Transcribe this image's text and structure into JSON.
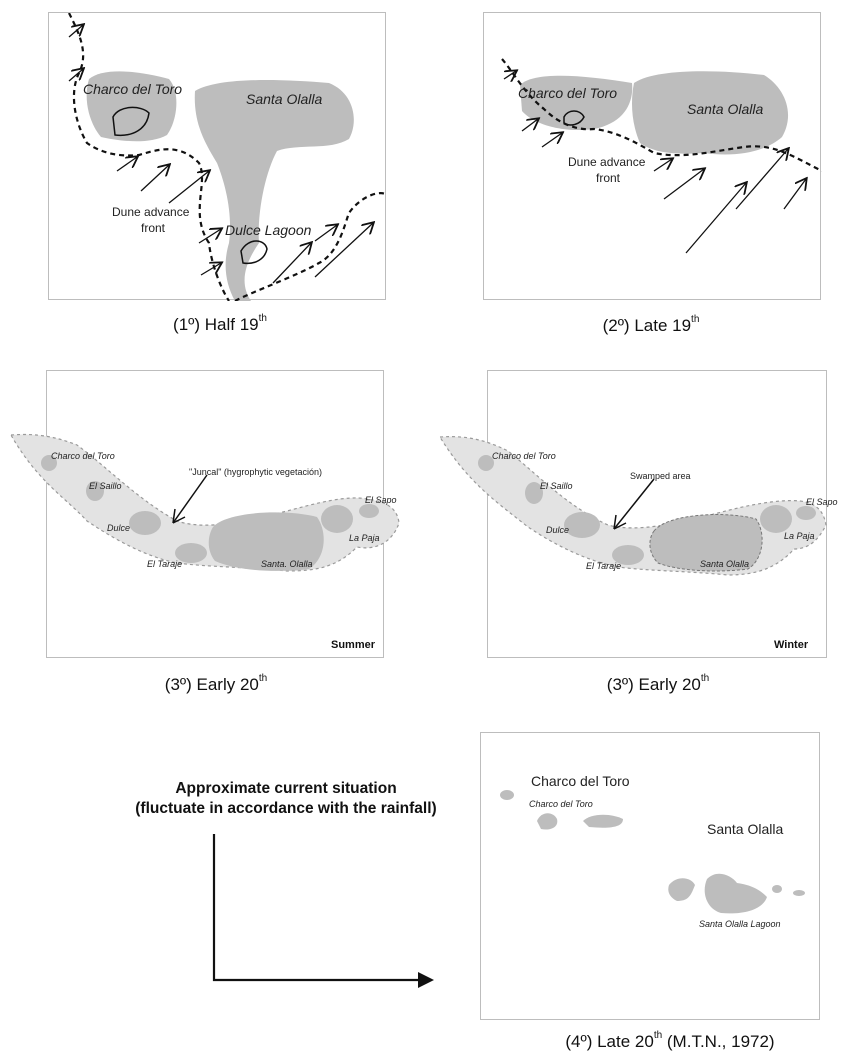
{
  "panels": {
    "p1": {
      "caption_prefix": "(1º) Half 19",
      "caption_sup": "th",
      "labels": {
        "charco": "Charco del Toro",
        "santa": "Santa Olalla",
        "dune_1": "Dune advance",
        "dune_2": "front",
        "dulce": "Dulce Lagoon"
      }
    },
    "p2": {
      "caption_prefix": "(2º) Late 19",
      "caption_sup": "th",
      "labels": {
        "charco": "Charco del Toro",
        "santa": "Santa Olalla",
        "dune_1": "Dune advance",
        "dune_2": "front"
      }
    },
    "p3": {
      "caption_prefix": "(3º) Early 20",
      "caption_sup": "th",
      "season": "Summer",
      "labels": {
        "charco": "Charco del Toro",
        "saillo": "El Saillo",
        "juncal": "\"Juncal\" (hygrophytic vegetación)",
        "sapo": "El Sapo",
        "dulce": "Dulce",
        "paja": "La Paja",
        "taraje": "El Taraje",
        "santa": "Santa. Olalla"
      }
    },
    "p4": {
      "caption_prefix": "(3º) Early 20",
      "caption_sup": "th",
      "season": "Winter",
      "labels": {
        "charco": "Charco del Toro",
        "saillo": "El Saillo",
        "swamped": "Swamped area",
        "sapo": "El Sapo",
        "dulce": "Dulce",
        "paja": "La Paja",
        "taraje": "El Taraje",
        "santa": "Santa Olalla"
      }
    },
    "p5": {
      "caption_prefix": "(4º) Late 20",
      "caption_sup": "th",
      "caption_suffix": " (M.T.N., 1972)",
      "labels": {
        "charco_big": "Charco del Toro",
        "charco_small": "Charco del Toro",
        "santa_big": "Santa Olalla",
        "santa_lagoon": "Santa Olalla Lagoon"
      }
    }
  },
  "current_note": {
    "line1": "Approximate current situation",
    "line2": "(fluctuate in accordance with the rainfall)"
  },
  "colors": {
    "lagoon": "#bdbdbd",
    "marsh": "#e3e3e3",
    "line": "#111111"
  }
}
